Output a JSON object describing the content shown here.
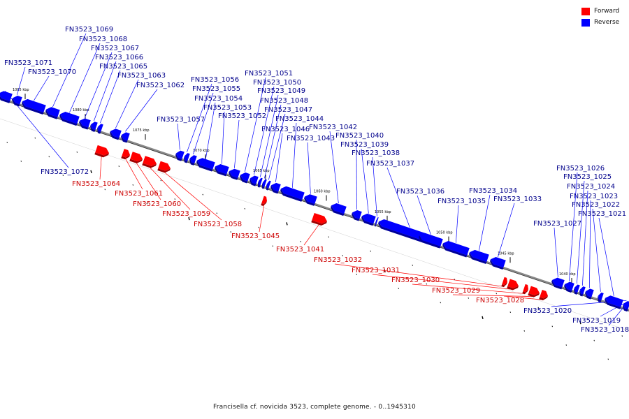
{
  "caption": "Francisella cf. novicida 3523, complete genome. - 0..1945310",
  "legend": [
    {
      "label": "Forward",
      "color": "#ff0000"
    },
    {
      "label": "Reverse",
      "color": "#0000ff"
    }
  ],
  "colors": {
    "forward": "#ff0000",
    "forward_label": "#cc0000",
    "reverse": "#0000ff",
    "reverse_label": "#00008b",
    "backbone": "#888888"
  },
  "scale_labels": [
    "1085 kbp",
    "1080 kbp",
    "1075 kbp",
    "1070 kbp",
    "1065 kbp",
    "1060 kbp",
    "1055 kbp",
    "1050 kbp",
    "1045 kbp",
    "1040 kbp"
  ],
  "genes": [
    {
      "id": "FN3523_1072",
      "strand": "reverse"
    },
    {
      "id": "FN3523_1071",
      "strand": "reverse"
    },
    {
      "id": "FN3523_1070",
      "strand": "reverse"
    },
    {
      "id": "FN3523_1069",
      "strand": "reverse"
    },
    {
      "id": "FN3523_1068",
      "strand": "reverse"
    },
    {
      "id": "FN3523_1067",
      "strand": "reverse"
    },
    {
      "id": "FN3523_1066",
      "strand": "reverse"
    },
    {
      "id": "FN3523_1065",
      "strand": "reverse"
    },
    {
      "id": "FN3523_1064",
      "strand": "forward"
    },
    {
      "id": "FN3523_1063",
      "strand": "reverse"
    },
    {
      "id": "FN3523_1062",
      "strand": "reverse"
    },
    {
      "id": "FN3523_1061",
      "strand": "forward"
    },
    {
      "id": "FN3523_1060",
      "strand": "forward"
    },
    {
      "id": "FN3523_1059",
      "strand": "forward"
    },
    {
      "id": "FN3523_1058",
      "strand": "forward"
    },
    {
      "id": "FN3523_1057",
      "strand": "reverse"
    },
    {
      "id": "FN3523_1056",
      "strand": "reverse"
    },
    {
      "id": "FN3523_1055",
      "strand": "reverse"
    },
    {
      "id": "FN3523_1054",
      "strand": "reverse"
    },
    {
      "id": "FN3523_1053",
      "strand": "reverse"
    },
    {
      "id": "FN3523_1052",
      "strand": "reverse"
    },
    {
      "id": "FN3523_1051",
      "strand": "reverse"
    },
    {
      "id": "FN3523_1050",
      "strand": "reverse"
    },
    {
      "id": "FN3523_1049",
      "strand": "reverse"
    },
    {
      "id": "FN3523_1048",
      "strand": "reverse"
    },
    {
      "id": "FN3523_1047",
      "strand": "reverse"
    },
    {
      "id": "FN3523_1046",
      "strand": "reverse"
    },
    {
      "id": "FN3523_1045",
      "strand": "forward"
    },
    {
      "id": "FN3523_1044",
      "strand": "reverse"
    },
    {
      "id": "FN3523_1043",
      "strand": "reverse"
    },
    {
      "id": "FN3523_1042",
      "strand": "reverse"
    },
    {
      "id": "FN3523_1041",
      "strand": "forward"
    },
    {
      "id": "FN3523_1040",
      "strand": "reverse"
    },
    {
      "id": "FN3523_1039",
      "strand": "reverse"
    },
    {
      "id": "FN3523_1038",
      "strand": "reverse"
    },
    {
      "id": "FN3523_1037",
      "strand": "reverse"
    },
    {
      "id": "FN3523_1036",
      "strand": "reverse"
    },
    {
      "id": "FN3523_1035",
      "strand": "reverse"
    },
    {
      "id": "FN3523_1034",
      "strand": "reverse"
    },
    {
      "id": "FN3523_1033",
      "strand": "reverse"
    },
    {
      "id": "FN3523_1032",
      "strand": "forward"
    },
    {
      "id": "FN3523_1031",
      "strand": "forward"
    },
    {
      "id": "FN3523_1030",
      "strand": "forward"
    },
    {
      "id": "FN3523_1029",
      "strand": "forward"
    },
    {
      "id": "FN3523_1028",
      "strand": "forward"
    },
    {
      "id": "FN3523_1027",
      "strand": "reverse"
    },
    {
      "id": "FN3523_1026",
      "strand": "reverse"
    },
    {
      "id": "FN3523_1025",
      "strand": "reverse"
    },
    {
      "id": "FN3523_1024",
      "strand": "reverse"
    },
    {
      "id": "FN3523_1023",
      "strand": "reverse"
    },
    {
      "id": "FN3523_1022",
      "strand": "reverse"
    },
    {
      "id": "FN3523_1021",
      "strand": "reverse"
    },
    {
      "id": "FN3523_1020",
      "strand": "reverse"
    },
    {
      "id": "FN3523_1019",
      "strand": "reverse"
    },
    {
      "id": "FN3523_1018",
      "strand": "reverse"
    }
  ]
}
